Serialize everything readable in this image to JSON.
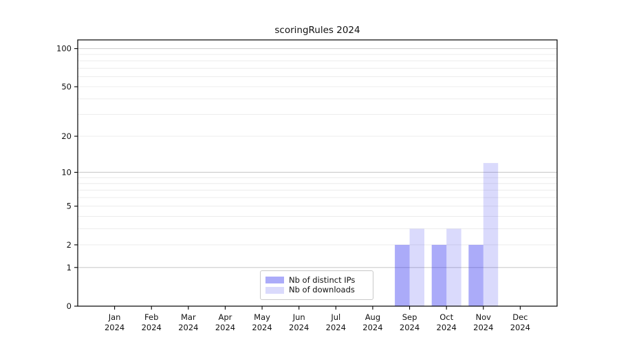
{
  "title": "scoringRules 2024",
  "chart_data": {
    "type": "bar",
    "title": "scoringRules 2024",
    "categories": [
      "Jan",
      "Feb",
      "Mar",
      "Apr",
      "May",
      "Jun",
      "Jul",
      "Aug",
      "Sep",
      "Oct",
      "Nov",
      "Dec"
    ],
    "category_year": "2024",
    "series": [
      {
        "name": "Nb of distinct IPs",
        "color": "#2222ee",
        "fill_opacity": 0.38,
        "values": [
          0,
          0,
          0,
          0,
          0,
          0,
          0,
          0,
          2,
          2,
          2,
          0
        ]
      },
      {
        "name": "Nb of downloads",
        "color": "#2222ee",
        "fill_opacity": 0.17,
        "values": [
          0,
          0,
          0,
          0,
          0,
          0,
          0,
          0,
          3,
          3,
          12,
          0
        ]
      }
    ],
    "yscale": "log1p",
    "ylim": [
      0,
      117
    ],
    "xlabel": "",
    "ylabel": "",
    "y_tick_labels": [
      "0",
      "1",
      "2",
      "5",
      "10",
      "20",
      "50",
      "100"
    ],
    "y_tick_values": [
      0,
      1,
      2,
      5,
      10,
      20,
      50,
      100
    ],
    "grid": {
      "major_values": [
        1,
        10,
        100
      ],
      "minor_values": [
        2,
        3,
        4,
        5,
        6,
        7,
        8,
        9,
        20,
        30,
        40,
        50,
        60,
        70,
        80,
        90
      ],
      "major_color": "#cccccc",
      "minor_color": "#ececec"
    },
    "legend_position": "lower-center",
    "axis_color": "#000000"
  }
}
